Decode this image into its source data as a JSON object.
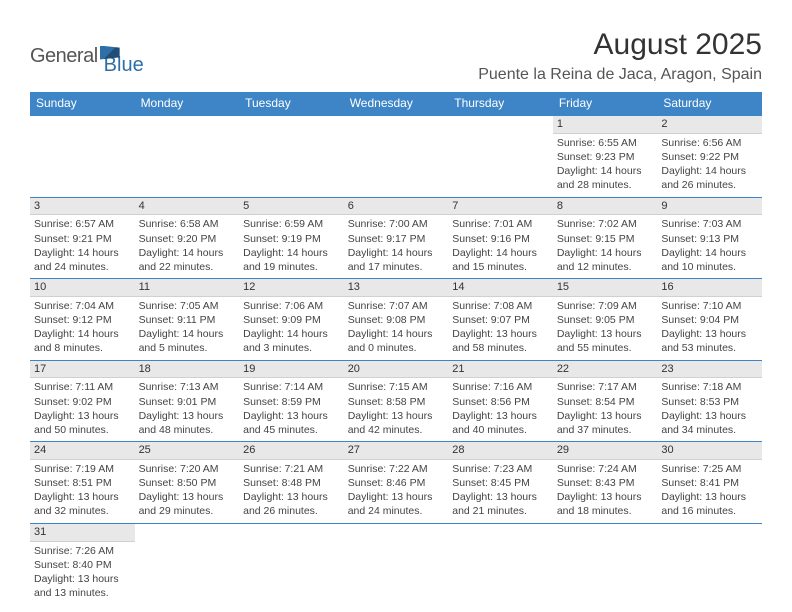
{
  "logo": {
    "text1": "General",
    "text2": "Blue"
  },
  "title": "August 2025",
  "location": "Puente la Reina de Jaca, Aragon, Spain",
  "colors": {
    "header_bg": "#3d85c6",
    "header_text": "#ffffff",
    "daynum_bg": "#e8e8e8",
    "cell_border": "#3d85c6",
    "logo_blue": "#2f6fa8"
  },
  "weekdays": [
    "Sunday",
    "Monday",
    "Tuesday",
    "Wednesday",
    "Thursday",
    "Friday",
    "Saturday"
  ],
  "weeks": [
    [
      {
        "day": "",
        "sunrise": "",
        "sunset": "",
        "daylight": ""
      },
      {
        "day": "",
        "sunrise": "",
        "sunset": "",
        "daylight": ""
      },
      {
        "day": "",
        "sunrise": "",
        "sunset": "",
        "daylight": ""
      },
      {
        "day": "",
        "sunrise": "",
        "sunset": "",
        "daylight": ""
      },
      {
        "day": "",
        "sunrise": "",
        "sunset": "",
        "daylight": ""
      },
      {
        "day": "1",
        "sunrise": "Sunrise: 6:55 AM",
        "sunset": "Sunset: 9:23 PM",
        "daylight": "Daylight: 14 hours and 28 minutes."
      },
      {
        "day": "2",
        "sunrise": "Sunrise: 6:56 AM",
        "sunset": "Sunset: 9:22 PM",
        "daylight": "Daylight: 14 hours and 26 minutes."
      }
    ],
    [
      {
        "day": "3",
        "sunrise": "Sunrise: 6:57 AM",
        "sunset": "Sunset: 9:21 PM",
        "daylight": "Daylight: 14 hours and 24 minutes."
      },
      {
        "day": "4",
        "sunrise": "Sunrise: 6:58 AM",
        "sunset": "Sunset: 9:20 PM",
        "daylight": "Daylight: 14 hours and 22 minutes."
      },
      {
        "day": "5",
        "sunrise": "Sunrise: 6:59 AM",
        "sunset": "Sunset: 9:19 PM",
        "daylight": "Daylight: 14 hours and 19 minutes."
      },
      {
        "day": "6",
        "sunrise": "Sunrise: 7:00 AM",
        "sunset": "Sunset: 9:17 PM",
        "daylight": "Daylight: 14 hours and 17 minutes."
      },
      {
        "day": "7",
        "sunrise": "Sunrise: 7:01 AM",
        "sunset": "Sunset: 9:16 PM",
        "daylight": "Daylight: 14 hours and 15 minutes."
      },
      {
        "day": "8",
        "sunrise": "Sunrise: 7:02 AM",
        "sunset": "Sunset: 9:15 PM",
        "daylight": "Daylight: 14 hours and 12 minutes."
      },
      {
        "day": "9",
        "sunrise": "Sunrise: 7:03 AM",
        "sunset": "Sunset: 9:13 PM",
        "daylight": "Daylight: 14 hours and 10 minutes."
      }
    ],
    [
      {
        "day": "10",
        "sunrise": "Sunrise: 7:04 AM",
        "sunset": "Sunset: 9:12 PM",
        "daylight": "Daylight: 14 hours and 8 minutes."
      },
      {
        "day": "11",
        "sunrise": "Sunrise: 7:05 AM",
        "sunset": "Sunset: 9:11 PM",
        "daylight": "Daylight: 14 hours and 5 minutes."
      },
      {
        "day": "12",
        "sunrise": "Sunrise: 7:06 AM",
        "sunset": "Sunset: 9:09 PM",
        "daylight": "Daylight: 14 hours and 3 minutes."
      },
      {
        "day": "13",
        "sunrise": "Sunrise: 7:07 AM",
        "sunset": "Sunset: 9:08 PM",
        "daylight": "Daylight: 14 hours and 0 minutes."
      },
      {
        "day": "14",
        "sunrise": "Sunrise: 7:08 AM",
        "sunset": "Sunset: 9:07 PM",
        "daylight": "Daylight: 13 hours and 58 minutes."
      },
      {
        "day": "15",
        "sunrise": "Sunrise: 7:09 AM",
        "sunset": "Sunset: 9:05 PM",
        "daylight": "Daylight: 13 hours and 55 minutes."
      },
      {
        "day": "16",
        "sunrise": "Sunrise: 7:10 AM",
        "sunset": "Sunset: 9:04 PM",
        "daylight": "Daylight: 13 hours and 53 minutes."
      }
    ],
    [
      {
        "day": "17",
        "sunrise": "Sunrise: 7:11 AM",
        "sunset": "Sunset: 9:02 PM",
        "daylight": "Daylight: 13 hours and 50 minutes."
      },
      {
        "day": "18",
        "sunrise": "Sunrise: 7:13 AM",
        "sunset": "Sunset: 9:01 PM",
        "daylight": "Daylight: 13 hours and 48 minutes."
      },
      {
        "day": "19",
        "sunrise": "Sunrise: 7:14 AM",
        "sunset": "Sunset: 8:59 PM",
        "daylight": "Daylight: 13 hours and 45 minutes."
      },
      {
        "day": "20",
        "sunrise": "Sunrise: 7:15 AM",
        "sunset": "Sunset: 8:58 PM",
        "daylight": "Daylight: 13 hours and 42 minutes."
      },
      {
        "day": "21",
        "sunrise": "Sunrise: 7:16 AM",
        "sunset": "Sunset: 8:56 PM",
        "daylight": "Daylight: 13 hours and 40 minutes."
      },
      {
        "day": "22",
        "sunrise": "Sunrise: 7:17 AM",
        "sunset": "Sunset: 8:54 PM",
        "daylight": "Daylight: 13 hours and 37 minutes."
      },
      {
        "day": "23",
        "sunrise": "Sunrise: 7:18 AM",
        "sunset": "Sunset: 8:53 PM",
        "daylight": "Daylight: 13 hours and 34 minutes."
      }
    ],
    [
      {
        "day": "24",
        "sunrise": "Sunrise: 7:19 AM",
        "sunset": "Sunset: 8:51 PM",
        "daylight": "Daylight: 13 hours and 32 minutes."
      },
      {
        "day": "25",
        "sunrise": "Sunrise: 7:20 AM",
        "sunset": "Sunset: 8:50 PM",
        "daylight": "Daylight: 13 hours and 29 minutes."
      },
      {
        "day": "26",
        "sunrise": "Sunrise: 7:21 AM",
        "sunset": "Sunset: 8:48 PM",
        "daylight": "Daylight: 13 hours and 26 minutes."
      },
      {
        "day": "27",
        "sunrise": "Sunrise: 7:22 AM",
        "sunset": "Sunset: 8:46 PM",
        "daylight": "Daylight: 13 hours and 24 minutes."
      },
      {
        "day": "28",
        "sunrise": "Sunrise: 7:23 AM",
        "sunset": "Sunset: 8:45 PM",
        "daylight": "Daylight: 13 hours and 21 minutes."
      },
      {
        "day": "29",
        "sunrise": "Sunrise: 7:24 AM",
        "sunset": "Sunset: 8:43 PM",
        "daylight": "Daylight: 13 hours and 18 minutes."
      },
      {
        "day": "30",
        "sunrise": "Sunrise: 7:25 AM",
        "sunset": "Sunset: 8:41 PM",
        "daylight": "Daylight: 13 hours and 16 minutes."
      }
    ],
    [
      {
        "day": "31",
        "sunrise": "Sunrise: 7:26 AM",
        "sunset": "Sunset: 8:40 PM",
        "daylight": "Daylight: 13 hours and 13 minutes."
      },
      {
        "day": "",
        "sunrise": "",
        "sunset": "",
        "daylight": ""
      },
      {
        "day": "",
        "sunrise": "",
        "sunset": "",
        "daylight": ""
      },
      {
        "day": "",
        "sunrise": "",
        "sunset": "",
        "daylight": ""
      },
      {
        "day": "",
        "sunrise": "",
        "sunset": "",
        "daylight": ""
      },
      {
        "day": "",
        "sunrise": "",
        "sunset": "",
        "daylight": ""
      },
      {
        "day": "",
        "sunrise": "",
        "sunset": "",
        "daylight": ""
      }
    ]
  ]
}
